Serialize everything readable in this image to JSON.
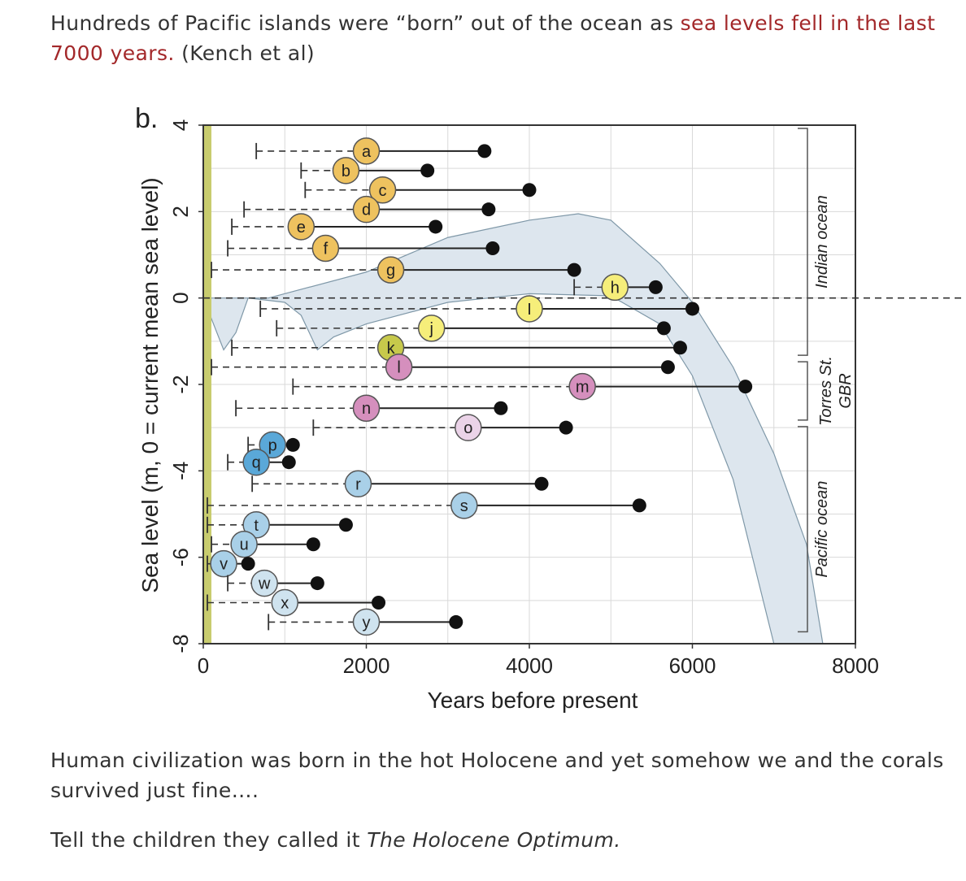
{
  "intro": {
    "before": "Hundreds of Pacific islands were “born” out of the ocean as ",
    "link": "sea levels fell in the last 7000 years.",
    "after": " (Kench et al)"
  },
  "paragraph2": "Human civilization was born in the hot Holocene and yet somehow we and the corals survived just fine….",
  "paragraph3": {
    "before": "Tell the children they called it ",
    "italic": "The Holocene Optimum."
  },
  "colors": {
    "link": "#a3282a",
    "envelope": "#dde6ee",
    "orange": "#eec25f",
    "yellow": "#f6ee7a",
    "olive": "#c7c94b",
    "pink": "#d58fbd",
    "lightpink": "#ebd3e8",
    "blue": "#5aa8d8",
    "lightblue": "#a9d0e8",
    "paleblue": "#cfe3ef",
    "green_band": "#c8cc6e"
  },
  "chart_data": {
    "type": "scatter",
    "panel_label": "b.",
    "xlabel": "Years before present",
    "ylabel": "Sea level (m, 0 = current mean sea level)",
    "xlim": [
      0,
      8000
    ],
    "ylim": [
      -8,
      4
    ],
    "x_ticks": [
      "0",
      "2000",
      "4000",
      "6000",
      "8000"
    ],
    "y_ticks": [
      "4",
      "2",
      "0",
      "-2",
      "-4",
      "-6",
      "-8"
    ],
    "grid": true,
    "reference_line_y": 0,
    "regions": [
      {
        "label": "Indian ocean",
        "y_from": 4,
        "y_to": -1.4
      },
      {
        "label": "Torres St. GBR",
        "y_from": -1.4,
        "y_to": -2.9
      },
      {
        "label": "Pacific ocean",
        "y_from": -2.9,
        "y_to": -7.8
      }
    ],
    "envelope_upper": [
      [
        0,
        0
      ],
      [
        800,
        0
      ],
      [
        2000,
        0.6
      ],
      [
        3000,
        1.4
      ],
      [
        4000,
        1.8
      ],
      [
        4600,
        1.95
      ],
      [
        5000,
        1.8
      ],
      [
        5600,
        0.8
      ],
      [
        6000,
        -0.1
      ],
      [
        6500,
        -1.6
      ],
      [
        7000,
        -3.6
      ],
      [
        7400,
        -5.7
      ],
      [
        7600,
        -8
      ]
    ],
    "envelope_lower": [
      [
        0,
        0
      ],
      [
        250,
        -1.2
      ],
      [
        400,
        -0.8
      ],
      [
        550,
        0
      ],
      [
        1000,
        -0.1
      ],
      [
        1200,
        -0.4
      ],
      [
        1400,
        -1.2
      ],
      [
        1600,
        -0.9
      ],
      [
        2000,
        -0.6
      ],
      [
        3000,
        -0.1
      ],
      [
        4000,
        0.1
      ],
      [
        5000,
        0.05
      ],
      [
        5600,
        -0.6
      ],
      [
        6000,
        -1.8
      ],
      [
        6500,
        -4.2
      ],
      [
        7000,
        -8
      ]
    ],
    "islands": [
      {
        "id": "a",
        "y": 3.4,
        "start": 650,
        "label_x": 2000,
        "end": 3450,
        "color": "orange"
      },
      {
        "id": "b",
        "y": 2.95,
        "start": 1200,
        "label_x": 1750,
        "end": 2750,
        "color": "orange"
      },
      {
        "id": "c",
        "y": 2.5,
        "start": 1250,
        "label_x": 2200,
        "end": 4000,
        "color": "orange"
      },
      {
        "id": "d",
        "y": 2.05,
        "start": 500,
        "label_x": 2000,
        "end": 3500,
        "color": "orange"
      },
      {
        "id": "e",
        "y": 1.65,
        "start": 350,
        "label_x": 1200,
        "end": 2850,
        "color": "orange"
      },
      {
        "id": "f",
        "y": 1.15,
        "start": 300,
        "label_x": 1500,
        "end": 3550,
        "color": "orange"
      },
      {
        "id": "g",
        "y": 0.65,
        "start": 100,
        "label_x": 2300,
        "end": 4550,
        "color": "orange"
      },
      {
        "id": "h",
        "y": 0.25,
        "start": 4550,
        "label_x": 5050,
        "end": 5550,
        "color": "yellow"
      },
      {
        "id": "I",
        "y": -0.25,
        "start": 700,
        "label_x": 4000,
        "end": 6000,
        "color": "yellow"
      },
      {
        "id": "j",
        "y": -0.7,
        "start": 900,
        "label_x": 2800,
        "end": 5650,
        "color": "yellow"
      },
      {
        "id": "k",
        "y": -1.15,
        "start": 350,
        "label_x": 2300,
        "end": 5850,
        "color": "olive"
      },
      {
        "id": "l",
        "y": -1.6,
        "start": 100,
        "label_x": 2400,
        "end": 5700,
        "color": "pink"
      },
      {
        "id": "m",
        "y": -2.05,
        "start": 1100,
        "label_x": 4650,
        "end": 6650,
        "color": "pink"
      },
      {
        "id": "n",
        "y": -2.55,
        "start": 400,
        "label_x": 2000,
        "end": 3650,
        "color": "pink"
      },
      {
        "id": "o",
        "y": -3.0,
        "start": 1350,
        "label_x": 3250,
        "end": 4450,
        "color": "lightpink"
      },
      {
        "id": "p",
        "y": -3.4,
        "start": 550,
        "label_x": 850,
        "end": 1100,
        "color": "blue"
      },
      {
        "id": "q",
        "y": -3.8,
        "start": 300,
        "label_x": 650,
        "end": 1050,
        "color": "blue"
      },
      {
        "id": "r",
        "y": -4.3,
        "start": 600,
        "label_x": 1900,
        "end": 4150,
        "color": "lightblue"
      },
      {
        "id": "s",
        "y": -4.8,
        "start": 50,
        "label_x": 3200,
        "end": 5350,
        "color": "lightblue"
      },
      {
        "id": "t",
        "y": -5.25,
        "start": 50,
        "label_x": 650,
        "end": 1750,
        "color": "lightblue"
      },
      {
        "id": "u",
        "y": -5.7,
        "start": 100,
        "label_x": 500,
        "end": 1350,
        "color": "lightblue"
      },
      {
        "id": "v",
        "y": -6.15,
        "start": 50,
        "label_x": 250,
        "end": 550,
        "color": "lightblue"
      },
      {
        "id": "w",
        "y": -6.6,
        "start": 300,
        "label_x": 750,
        "end": 1400,
        "color": "paleblue"
      },
      {
        "id": "x",
        "y": -7.05,
        "start": 50,
        "label_x": 1000,
        "end": 2150,
        "color": "paleblue"
      },
      {
        "id": "y",
        "y": -7.5,
        "start": 800,
        "label_x": 2000,
        "end": 3100,
        "color": "paleblue"
      }
    ]
  }
}
